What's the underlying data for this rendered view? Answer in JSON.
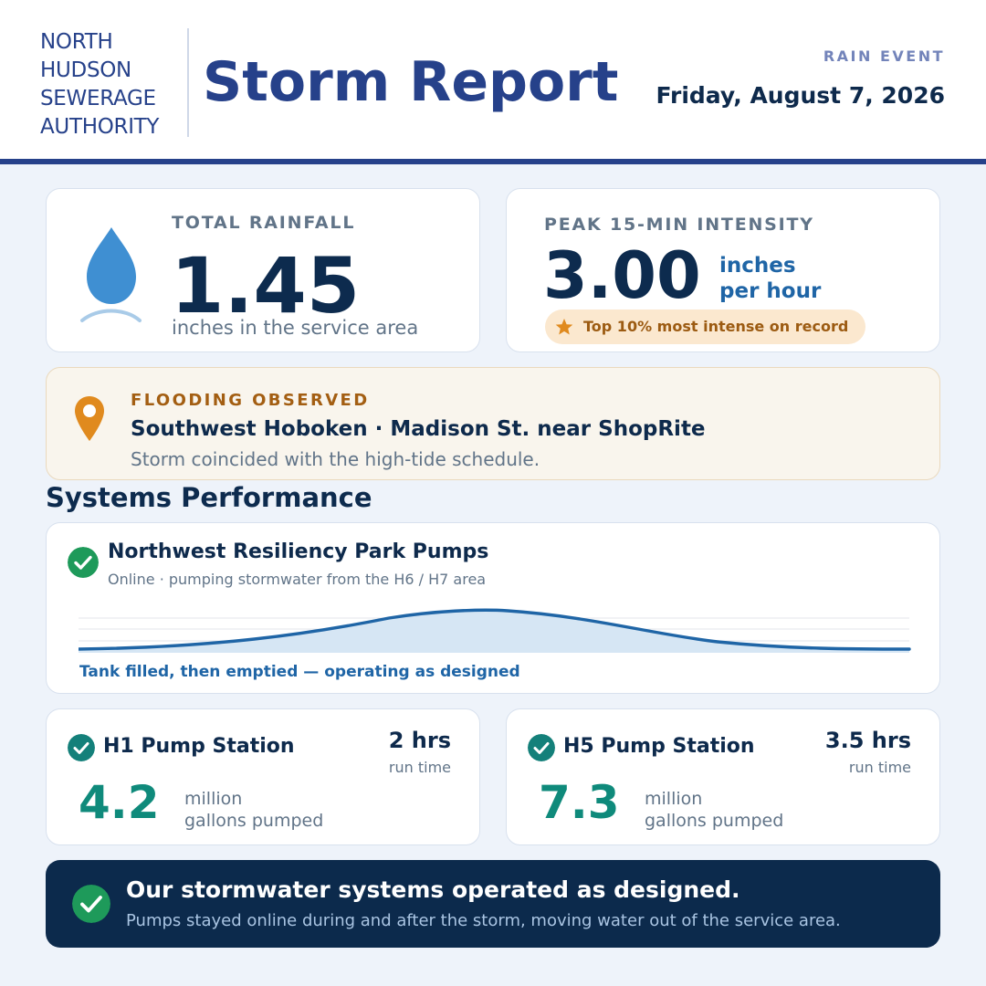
{
  "header": {
    "logo_lines": [
      "NORTH",
      "HUDSON",
      "SEWERAGE",
      "AUTHORITY"
    ],
    "title": "Storm Report",
    "kicker": "RAIN EVENT",
    "date": "Friday, August 7, 2026"
  },
  "rainfall": {
    "label": "TOTAL RAINFALL",
    "value": "1.45",
    "caption": "inches in the service area",
    "icon": "raindrop-icon"
  },
  "intensity": {
    "label": "PEAK 15-MIN INTENSITY",
    "value": "3.00",
    "unit_line1": "inches",
    "unit_line2": "per hour",
    "badge": "Top 10% most intense on record",
    "badge_icon": "star-icon"
  },
  "flooding": {
    "label": "FLOODING OBSERVED",
    "location": "Southwest Hoboken · Madison St. near ShopRite",
    "note": "Storm coincided with the high-tide schedule.",
    "icon": "map-pin-icon"
  },
  "systems": {
    "title": "Systems Performance",
    "park": {
      "name": "Northwest Resiliency Park Pumps",
      "status": "Online · pumping stormwater from the H6 / H7 area",
      "chart_caption": "Tank filled, then emptied — operating as designed",
      "icon": "check-circle-icon"
    },
    "h1": {
      "name": "H1 Pump Station",
      "run_time": "2 hrs",
      "run_label": "run time",
      "value": "4.2",
      "unit_line1": "million",
      "unit_line2": "gallons pumped",
      "icon": "check-circle-icon"
    },
    "h5": {
      "name": "H5 Pump Station",
      "run_time": "3.5 hrs",
      "run_label": "run time",
      "value": "7.3",
      "unit_line1": "million",
      "unit_line2": "gallons pumped",
      "icon": "check-circle-icon"
    }
  },
  "banner": {
    "headline": "Our stormwater systems operated as designed.",
    "subtext": "Pumps stayed online during and after the storm, moving water out of the service area.",
    "icon": "check-circle-icon"
  },
  "colors": {
    "navy": "#26418a",
    "dark_navy": "#0c2a4c",
    "green_check": "#1e9a5a",
    "teal_check": "#14807a",
    "teal_value": "#0f8a7b",
    "amber": "#e08a1e",
    "brown_text": "#9c5b12",
    "chart_line": "#1f65a6"
  }
}
